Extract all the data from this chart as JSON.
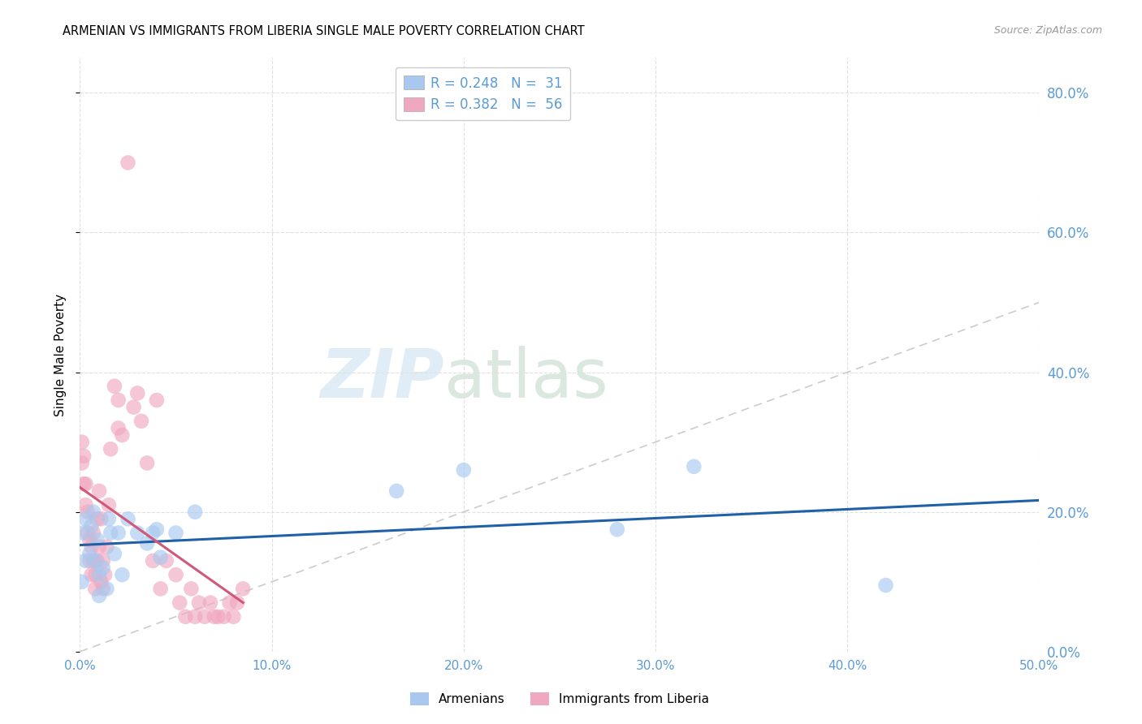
{
  "title": "ARMENIAN VS IMMIGRANTS FROM LIBERIA SINGLE MALE POVERTY CORRELATION CHART",
  "source_text": "Source: ZipAtlas.com",
  "ylabel": "Single Male Poverty",
  "xlim": [
    0.0,
    0.5
  ],
  "ylim": [
    0.0,
    0.85
  ],
  "legend_entry_armenian": "R = 0.248   N =  31",
  "legend_entry_liberia": "R = 0.382   N =  56",
  "watermark_zip": "ZIP",
  "watermark_atlas": "atlas",
  "axis_color": "#5b9bd5",
  "dot_color_armenian": "#a8c8f0",
  "dot_color_liberia": "#f0a8c0",
  "regression_color_armenian": "#2060a8",
  "regression_color_liberia": "#d05878",
  "diagonal_color": "#cccccc",
  "armenian_x": [
    0.001,
    0.002,
    0.003,
    0.003,
    0.005,
    0.006,
    0.007,
    0.008,
    0.009,
    0.01,
    0.01,
    0.012,
    0.014,
    0.015,
    0.016,
    0.018,
    0.02,
    0.022,
    0.025,
    0.03,
    0.035,
    0.038,
    0.04,
    0.042,
    0.05,
    0.06,
    0.165,
    0.2,
    0.28,
    0.32,
    0.42
  ],
  "armenian_y": [
    0.1,
    0.17,
    0.13,
    0.19,
    0.14,
    0.18,
    0.2,
    0.13,
    0.16,
    0.11,
    0.08,
    0.12,
    0.09,
    0.19,
    0.17,
    0.14,
    0.17,
    0.11,
    0.19,
    0.17,
    0.155,
    0.17,
    0.175,
    0.135,
    0.17,
    0.2,
    0.23,
    0.26,
    0.175,
    0.265,
    0.095
  ],
  "liberia_x": [
    0.001,
    0.001,
    0.002,
    0.002,
    0.003,
    0.003,
    0.004,
    0.004,
    0.005,
    0.005,
    0.006,
    0.006,
    0.007,
    0.007,
    0.008,
    0.008,
    0.009,
    0.009,
    0.01,
    0.01,
    0.011,
    0.011,
    0.012,
    0.012,
    0.013,
    0.014,
    0.015,
    0.016,
    0.018,
    0.02,
    0.02,
    0.022,
    0.025,
    0.028,
    0.03,
    0.032,
    0.035,
    0.038,
    0.04,
    0.042,
    0.045,
    0.05,
    0.052,
    0.055,
    0.058,
    0.06,
    0.062,
    0.065,
    0.068,
    0.07,
    0.072,
    0.075,
    0.078,
    0.08,
    0.082,
    0.085
  ],
  "liberia_y": [
    0.27,
    0.3,
    0.24,
    0.28,
    0.21,
    0.24,
    0.17,
    0.2,
    0.13,
    0.16,
    0.11,
    0.15,
    0.13,
    0.17,
    0.11,
    0.09,
    0.13,
    0.19,
    0.23,
    0.15,
    0.1,
    0.19,
    0.09,
    0.13,
    0.11,
    0.15,
    0.21,
    0.29,
    0.38,
    0.36,
    0.32,
    0.31,
    0.7,
    0.35,
    0.37,
    0.33,
    0.27,
    0.13,
    0.36,
    0.09,
    0.13,
    0.11,
    0.07,
    0.05,
    0.09,
    0.05,
    0.07,
    0.05,
    0.07,
    0.05,
    0.05,
    0.05,
    0.07,
    0.05,
    0.07,
    0.09
  ]
}
